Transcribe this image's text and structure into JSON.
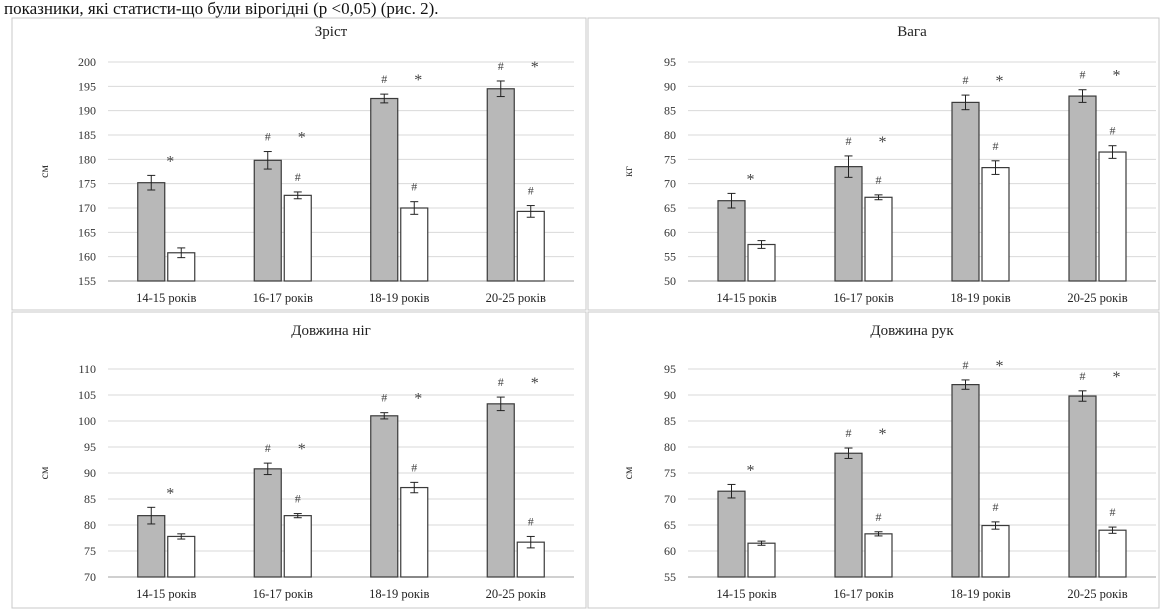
{
  "header_text": "показники, які статисти-що були вірогідні (р <0,05) (рис. 2).",
  "colors": {
    "series_1": "#b8b8b8",
    "series_2": "#ffffff",
    "outline": "#3a3a3a",
    "grid": "#d9d9d9",
    "panel_border": "#c8c8c8"
  },
  "chart_data": [
    {
      "type": "bar",
      "title": "Зріст",
      "ylabel": "см",
      "xlabel": "",
      "ylim": [
        155,
        200
      ],
      "yticks": [
        155,
        160,
        165,
        170,
        175,
        180,
        185,
        190,
        195,
        200
      ],
      "grid": true,
      "categories": [
        "14-15 років",
        "16-17 років",
        "18-19 років",
        "20-25 років"
      ],
      "series": [
        {
          "values": [
            175.2,
            179.8,
            192.5,
            194.5
          ],
          "errors": [
            1.5,
            1.8,
            0.9,
            1.6
          ],
          "markers": [
            "*",
            "# *",
            "# *",
            "# *"
          ]
        },
        {
          "values": [
            160.8,
            172.6,
            170.0,
            169.3
          ],
          "errors": [
            1.0,
            0.7,
            1.3,
            1.2
          ],
          "markers": [
            "",
            "#",
            "#",
            "#"
          ]
        }
      ]
    },
    {
      "type": "bar",
      "title": "Вага",
      "ylabel": "кг",
      "xlabel": "",
      "ylim": [
        50,
        95
      ],
      "yticks": [
        50,
        55,
        60,
        65,
        70,
        75,
        80,
        85,
        90,
        95
      ],
      "grid": true,
      "categories": [
        "14-15 років",
        "16-17 років",
        "18-19 років",
        "20-25 років"
      ],
      "series": [
        {
          "values": [
            66.5,
            73.5,
            86.7,
            88.0
          ],
          "errors": [
            1.5,
            2.2,
            1.5,
            1.3
          ],
          "markers": [
            "*",
            "# *",
            "# *",
            "# *"
          ]
        },
        {
          "values": [
            57.5,
            67.2,
            73.3,
            76.5
          ],
          "errors": [
            0.8,
            0.5,
            1.4,
            1.3
          ],
          "markers": [
            "",
            "#",
            "#",
            "#"
          ]
        }
      ]
    },
    {
      "type": "bar",
      "title": "Довжина ніг",
      "ylabel": "см",
      "xlabel": "",
      "ylim": [
        70,
        110
      ],
      "yticks": [
        70,
        75,
        80,
        85,
        90,
        95,
        100,
        105,
        110
      ],
      "grid": true,
      "categories": [
        "14-15 років",
        "16-17 років",
        "18-19 років",
        "20-25 років"
      ],
      "series": [
        {
          "values": [
            81.8,
            90.8,
            101.0,
            103.3
          ],
          "errors": [
            1.6,
            1.1,
            0.6,
            1.3
          ],
          "markers": [
            "*",
            "# *",
            "# *",
            "# *"
          ]
        },
        {
          "values": [
            77.8,
            81.8,
            87.2,
            76.7
          ],
          "errors": [
            0.5,
            0.4,
            1.0,
            1.1
          ],
          "markers": [
            "",
            "#",
            "#",
            "#"
          ]
        }
      ]
    },
    {
      "type": "bar",
      "title": "Довжина рук",
      "ylabel": "см",
      "xlabel": "",
      "ylim": [
        55,
        95
      ],
      "yticks": [
        55,
        60,
        65,
        70,
        75,
        80,
        85,
        90,
        95
      ],
      "grid": true,
      "categories": [
        "14-15 років",
        "16-17 років",
        "18-19 років",
        "20-25 років"
      ],
      "series": [
        {
          "values": [
            71.5,
            78.8,
            92.0,
            89.8
          ],
          "errors": [
            1.3,
            1.0,
            0.9,
            1.0
          ],
          "markers": [
            "*",
            "# *",
            "# *",
            "# *"
          ]
        },
        {
          "values": [
            61.5,
            63.3,
            64.9,
            64.0
          ],
          "errors": [
            0.4,
            0.4,
            0.7,
            0.6
          ],
          "markers": [
            "",
            "#",
            "#",
            "#"
          ]
        }
      ]
    }
  ]
}
